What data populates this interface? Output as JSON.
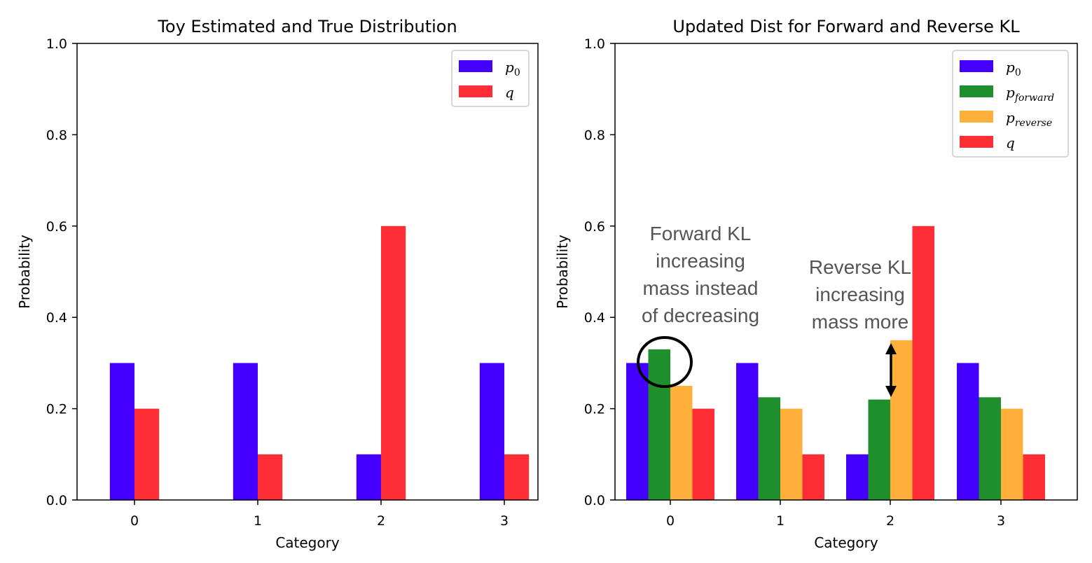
{
  "chart_data": [
    {
      "type": "bar",
      "title": "Toy Estimated and True Distribution",
      "xlabel": "Category",
      "ylabel": "Probability",
      "ylim": [
        0,
        1
      ],
      "yticks": [
        "0.0",
        "0.2",
        "0.4",
        "0.6",
        "0.8",
        "1.0"
      ],
      "categories": [
        "0",
        "1",
        "2",
        "3"
      ],
      "legend_position": "top-right",
      "series": [
        {
          "name": "p",
          "sub": "0",
          "color": "#4400ff",
          "values": [
            0.3,
            0.3,
            0.1,
            0.3
          ]
        },
        {
          "name": "q",
          "sub": "",
          "color": "#ff2e36",
          "values": [
            0.2,
            0.1,
            0.6,
            0.1
          ]
        }
      ],
      "annotations": []
    },
    {
      "type": "bar",
      "title": "Updated Dist for Forward and Reverse KL",
      "xlabel": "Category",
      "ylabel": "Probability",
      "ylim": [
        0,
        1
      ],
      "yticks": [
        "0.0",
        "0.2",
        "0.4",
        "0.6",
        "0.8",
        "1.0"
      ],
      "categories": [
        "0",
        "1",
        "2",
        "3"
      ],
      "legend_position": "top-right",
      "series": [
        {
          "name": "p",
          "sub": "0",
          "color": "#4400ff",
          "values": [
            0.3,
            0.3,
            0.1,
            0.3
          ]
        },
        {
          "name": "p",
          "sub": "forward",
          "color": "#1f8f2e",
          "values": [
            0.33,
            0.225,
            0.22,
            0.225
          ]
        },
        {
          "name": "p",
          "sub": "reverse",
          "color": "#ffb03b",
          "values": [
            0.25,
            0.2,
            0.35,
            0.2
          ]
        },
        {
          "name": "q",
          "sub": "",
          "color": "#ff2e36",
          "values": [
            0.2,
            0.1,
            0.6,
            0.1
          ]
        }
      ],
      "annotations": [
        {
          "lines": [
            "Forward KL",
            "increasing",
            "mass instead",
            "of decreasing"
          ]
        },
        {
          "lines": [
            "Reverse KL",
            "increasing",
            "mass more"
          ]
        }
      ]
    }
  ]
}
